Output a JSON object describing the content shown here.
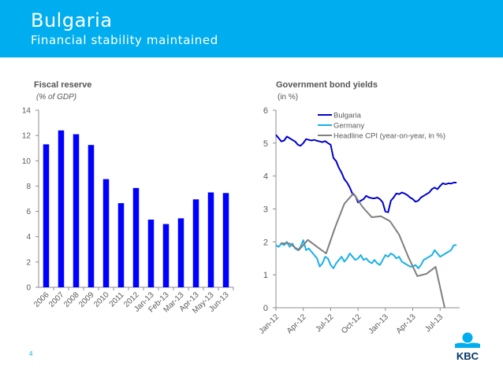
{
  "header": {
    "title": "Bulgaria",
    "subtitle": "Financial stability maintained"
  },
  "page_number": "4",
  "logo": {
    "text": "KBC",
    "icon": "kbc-logo-icon"
  },
  "colors": {
    "header_bg": "#00aeef",
    "bar": "#0000ff",
    "bulgaria": "#0000cc",
    "germany": "#1ab0e6",
    "cpi": "#7f7f7f",
    "logo_text": "#003366"
  },
  "chart_data": [
    {
      "type": "bar",
      "title": "Fiscal reserve",
      "subtitle": "(% of GDP)",
      "xlabel": "",
      "ylabel": "",
      "categories": [
        "2006",
        "2007",
        "2008",
        "2009",
        "2010",
        "2011",
        "2012",
        "Jan-13",
        "Feb-13",
        "Mar-13",
        "Apr-13",
        "May-13",
        "Jun-13"
      ],
      "values": [
        11.3,
        12.4,
        12.1,
        11.25,
        8.55,
        6.65,
        7.85,
        5.35,
        5.0,
        5.45,
        6.95,
        7.5,
        7.45
      ],
      "ylim": [
        0,
        14
      ],
      "yticks": [
        "0",
        "2",
        "4",
        "6",
        "8",
        "10",
        "12",
        "14"
      ],
      "grid": false,
      "legend": "none"
    },
    {
      "type": "line",
      "title": "Government bond yields",
      "subtitle": "(in %)",
      "xlabel": "",
      "ylabel": "",
      "x_unit": "months since Jan-12",
      "xlim": [
        0,
        19.8
      ],
      "ylim": [
        0,
        6
      ],
      "yticks": [
        "0",
        "1",
        "2",
        "3",
        "4",
        "5",
        "6"
      ],
      "xticks": [
        {
          "pos": 0,
          "label": "Jan-12"
        },
        {
          "pos": 3,
          "label": "Apr-12"
        },
        {
          "pos": 6,
          "label": "Jul-12"
        },
        {
          "pos": 9,
          "label": "Oct-12"
        },
        {
          "pos": 12,
          "label": "Jan-13"
        },
        {
          "pos": 15,
          "label": "Apr-13"
        },
        {
          "pos": 18,
          "label": "Jul-13"
        }
      ],
      "grid": false,
      "legend": "top-center",
      "series": [
        {
          "name": "Bulgaria",
          "x": [
            0,
            0.3,
            0.6,
            0.9,
            1.2,
            1.5,
            1.8,
            2.1,
            2.4,
            2.7,
            3.0,
            3.3,
            3.6,
            3.9,
            4.2,
            4.5,
            4.8,
            5.1,
            5.4,
            5.7,
            6.0,
            6.3,
            6.6,
            6.9,
            7.2,
            7.5,
            7.8,
            8.1,
            8.4,
            8.7,
            9.0,
            9.3,
            9.6,
            9.9,
            10.2,
            10.5,
            10.8,
            11.1,
            11.4,
            11.7,
            12.0,
            12.3,
            12.6,
            12.9,
            13.2,
            13.5,
            13.8,
            14.1,
            14.4,
            14.7,
            15.0,
            15.3,
            15.6,
            15.9,
            16.2,
            16.5,
            16.8,
            17.1,
            17.4,
            17.7,
            18.0,
            18.3,
            18.6,
            18.9,
            19.2,
            19.5,
            19.8
          ],
          "values": [
            5.25,
            5.15,
            5.05,
            5.08,
            5.2,
            5.15,
            5.1,
            5.05,
            4.95,
            4.92,
            5.0,
            5.12,
            5.1,
            5.08,
            5.1,
            5.07,
            5.05,
            5.03,
            5.06,
            5.0,
            4.95,
            4.55,
            4.45,
            4.25,
            4.1,
            3.9,
            3.8,
            3.65,
            3.45,
            3.4,
            3.2,
            3.25,
            3.3,
            3.4,
            3.35,
            3.33,
            3.32,
            3.35,
            3.3,
            3.2,
            2.92,
            2.9,
            3.25,
            3.35,
            3.47,
            3.45,
            3.5,
            3.47,
            3.42,
            3.35,
            3.3,
            3.22,
            3.25,
            3.35,
            3.4,
            3.45,
            3.5,
            3.6,
            3.65,
            3.6,
            3.7,
            3.78,
            3.75,
            3.78,
            3.77,
            3.8,
            3.8
          ]
        },
        {
          "name": "Germany",
          "x": [
            0,
            0.3,
            0.6,
            0.9,
            1.2,
            1.5,
            1.8,
            2.1,
            2.4,
            2.7,
            3.0,
            3.3,
            3.6,
            3.9,
            4.2,
            4.5,
            4.8,
            5.1,
            5.4,
            5.7,
            6.0,
            6.3,
            6.6,
            6.9,
            7.2,
            7.5,
            7.8,
            8.1,
            8.4,
            8.7,
            9.0,
            9.3,
            9.6,
            9.9,
            10.2,
            10.5,
            10.8,
            11.1,
            11.4,
            11.7,
            12.0,
            12.3,
            12.6,
            12.9,
            13.2,
            13.5,
            13.8,
            14.1,
            14.4,
            14.7,
            15.0,
            15.3,
            15.6,
            15.9,
            16.2,
            16.5,
            16.8,
            17.1,
            17.4,
            17.7,
            18.0,
            18.3,
            18.6,
            18.9,
            19.2,
            19.5,
            19.8
          ],
          "values": [
            1.9,
            1.85,
            1.95,
            1.9,
            2.0,
            1.85,
            1.95,
            1.8,
            1.75,
            1.85,
            2.05,
            1.75,
            1.8,
            1.7,
            1.6,
            1.5,
            1.25,
            1.35,
            1.55,
            1.5,
            1.3,
            1.2,
            1.35,
            1.45,
            1.55,
            1.4,
            1.5,
            1.65,
            1.55,
            1.45,
            1.5,
            1.6,
            1.45,
            1.5,
            1.4,
            1.35,
            1.45,
            1.35,
            1.3,
            1.45,
            1.6,
            1.55,
            1.65,
            1.6,
            1.5,
            1.55,
            1.4,
            1.35,
            1.3,
            1.25,
            1.25,
            1.3,
            1.2,
            1.3,
            1.45,
            1.5,
            1.55,
            1.6,
            1.75,
            1.65,
            1.55,
            1.6,
            1.65,
            1.7,
            1.75,
            1.9,
            1.9
          ]
        },
        {
          "name": "Headline CPI (year-on-year, in %)",
          "x": [
            0.5,
            1.5,
            2.5,
            3.5,
            4.5,
            5.5,
            6.5,
            7.5,
            8.5,
            9.5,
            10.5,
            11.5,
            12.5,
            13.5,
            14.5,
            15.5,
            16.5,
            17.5,
            18.5
          ],
          "values": [
            1.96,
            1.95,
            1.75,
            2.06,
            1.85,
            1.65,
            2.45,
            3.16,
            3.47,
            3.06,
            2.75,
            2.78,
            2.63,
            2.22,
            1.55,
            0.96,
            1.03,
            1.24,
            0.0
          ]
        }
      ]
    }
  ]
}
